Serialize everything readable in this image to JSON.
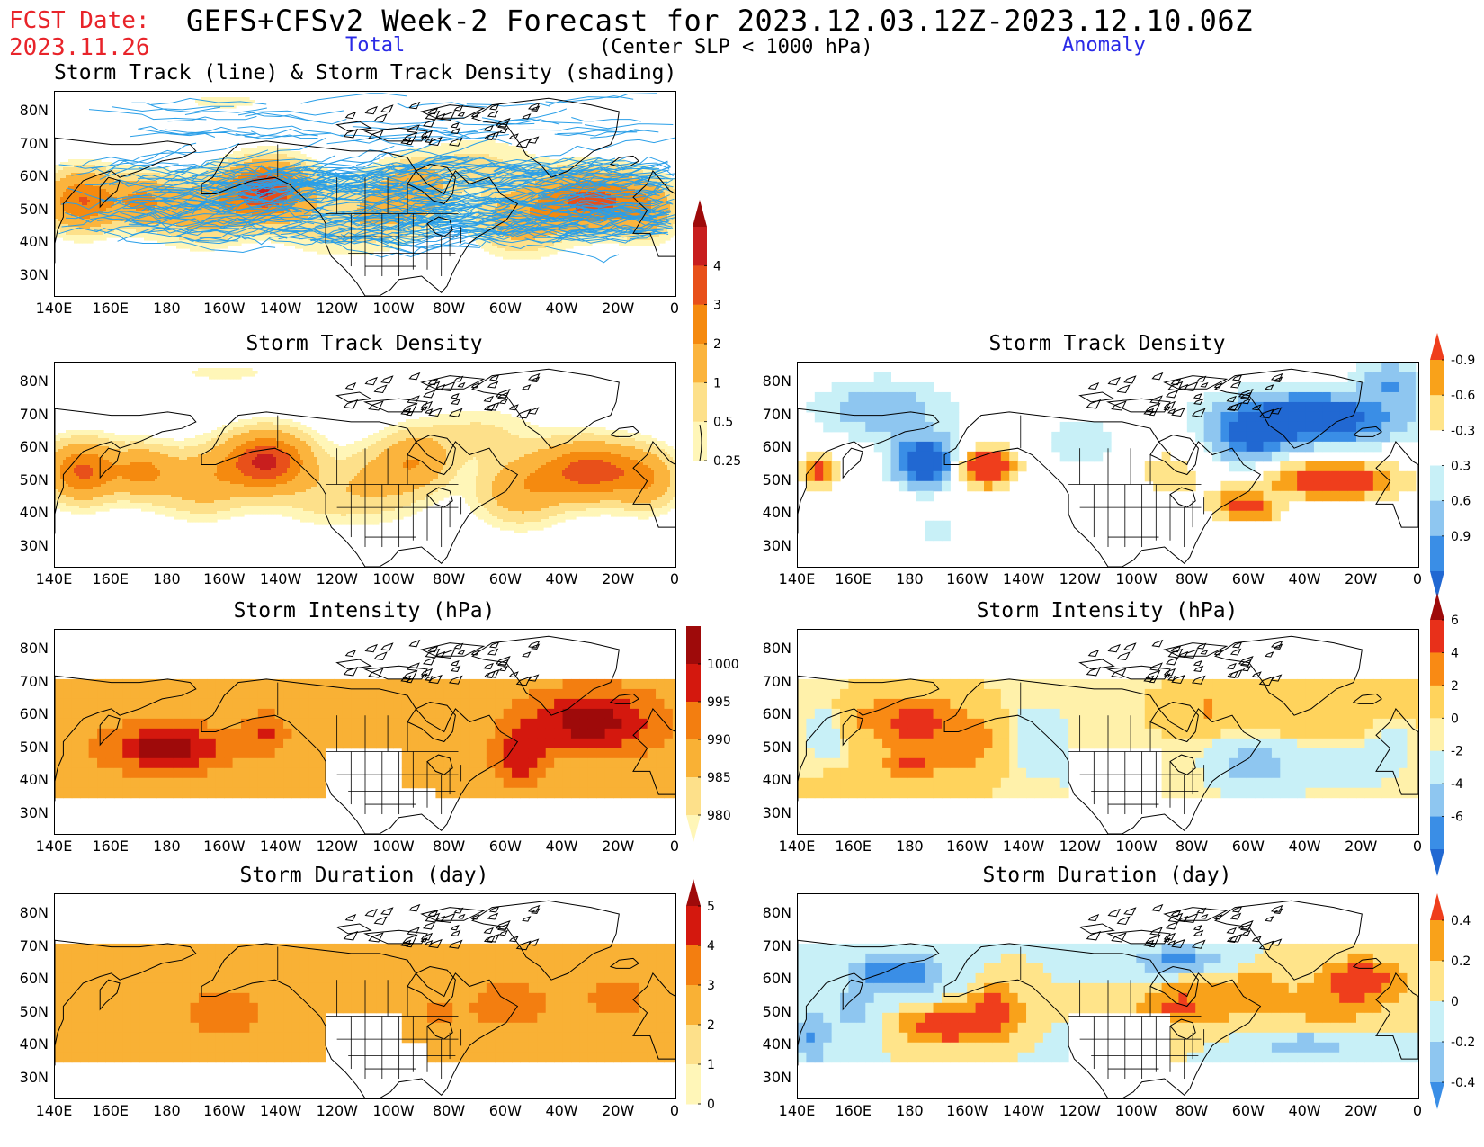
{
  "header": {
    "fcst_label": "FCST Date:",
    "fcst_date": "2023.11.26",
    "title": "GEFS+CFSv2 Week-2 Forecast for 2023.12.03.12Z-2023.12.10.06Z",
    "subtitle": "(Center SLP < 1000 hPa)",
    "total_label": "Total",
    "anomaly_label": "Anomaly"
  },
  "axes": {
    "lon_labels": [
      "140E",
      "160E",
      "180",
      "160W",
      "140W",
      "120W",
      "100W",
      "80W",
      "60W",
      "40W",
      "20W",
      "0"
    ],
    "lat_labels": [
      "80N",
      "70N",
      "60N",
      "50N",
      "40N",
      "30N"
    ]
  },
  "panels": [
    {
      "id": "track-total",
      "title": "Storm Track (line) & Storm Track Density (shading)",
      "kind": "track_total"
    },
    {
      "id": "density-total",
      "title": "Storm Track Density",
      "kind": "density_total"
    },
    {
      "id": "density-anom",
      "title": "Storm Track Density",
      "kind": "density_anom"
    },
    {
      "id": "intensity-total",
      "title": "Storm Intensity (hPa)",
      "kind": "intensity_total"
    },
    {
      "id": "intensity-anom",
      "title": "Storm Intensity (hPa)",
      "kind": "intensity_anom"
    },
    {
      "id": "duration-total",
      "title": "Storm Duration (day)",
      "kind": "duration_total"
    },
    {
      "id": "duration-anom",
      "title": "Storm Duration (day)",
      "kind": "duration_anom"
    }
  ],
  "colorbars": [
    {
      "id": "cb-density-total",
      "labels": [
        "0.25",
        "0.5",
        "1",
        "2",
        "3",
        "4"
      ],
      "colors": [
        "#fff6b8",
        "#fde08a",
        "#fbb43d",
        "#f58a0f",
        "#e8501a",
        "#c81e1e",
        "#9e0a0a"
      ]
    },
    {
      "id": "cb-density-anom",
      "labels": [
        "-0.9",
        "-0.6",
        "-0.3",
        "0.3",
        "0.6",
        "0.9"
      ],
      "colors": [
        "#2168d2",
        "#3a8ee6",
        "#8ec6f0",
        "#c8f0f7",
        "#ffffff",
        "#ffe48a",
        "#f9a21a",
        "#ef3e1c"
      ]
    },
    {
      "id": "cb-intensity-total",
      "labels": [
        "1000",
        "995",
        "990",
        "985",
        "980"
      ],
      "colors": [
        "#fff6b8",
        "#fde08a",
        "#f9b135",
        "#f37e10",
        "#d4180e",
        "#9e0a0a"
      ]
    },
    {
      "id": "cb-intensity-anom",
      "labels": [
        "6",
        "4",
        "2",
        "0",
        "-2",
        "-4",
        "-6"
      ],
      "colors": [
        "#9e0a0a",
        "#e8301a",
        "#f98a14",
        "#ffd35c",
        "#fff1aa",
        "#c8f0f7",
        "#8ec6f0",
        "#3a8ee6",
        "#2168d2"
      ]
    },
    {
      "id": "cb-duration-total",
      "labels": [
        "5",
        "4",
        "3",
        "2",
        "1",
        "0"
      ],
      "colors": [
        "#9e0a0a",
        "#d4180e",
        "#f37e10",
        "#f9b135",
        "#fde08a",
        "#fff6b8"
      ]
    },
    {
      "id": "cb-duration-anom",
      "labels": [
        "0.4",
        "0.2",
        "0",
        "-0.2",
        "-0.4"
      ],
      "colors": [
        "#ef3e1c",
        "#f9a21a",
        "#ffe48a",
        "#c8f0f7",
        "#8ec6f0",
        "#3a8ee6"
      ]
    }
  ],
  "colors": {
    "track_line": "#2a9fe8",
    "coast": "#000000",
    "header_red": "#e8242a",
    "header_blue": "#2a2ae6"
  }
}
